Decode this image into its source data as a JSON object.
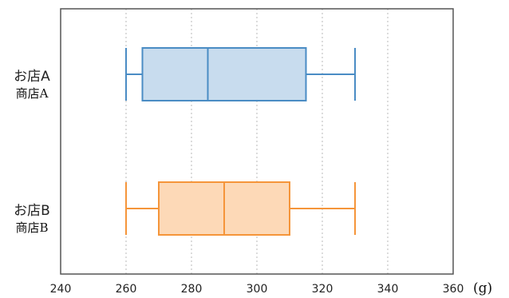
{
  "chart_data": {
    "type": "boxplot",
    "orientation": "horizontal",
    "xlim": [
      240,
      360
    ],
    "xticks": [
      "240",
      "260",
      "280",
      "300",
      "320",
      "340",
      "360"
    ],
    "x_unit": "(g)",
    "grid": "vertical dotted",
    "series": [
      {
        "label": "お店A",
        "sublabel": "商店A",
        "min": 260,
        "q1": 265,
        "median": 285,
        "q3": 315,
        "max": 330,
        "color": "#4a8cc4",
        "fill": "#c8dcee"
      },
      {
        "label": "お店B",
        "sublabel": "商店B",
        "min": 260,
        "q1": 270,
        "median": 290,
        "q3": 310,
        "max": 330,
        "color": "#f5953a",
        "fill": "#fdd9b7"
      }
    ]
  }
}
